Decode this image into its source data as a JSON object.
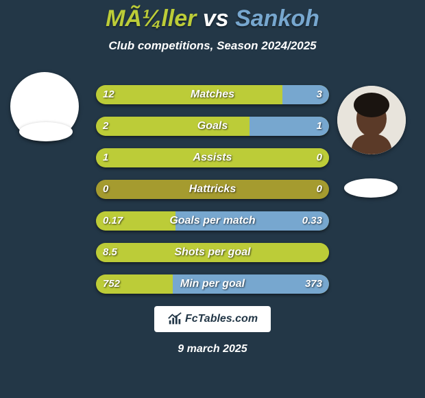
{
  "title": {
    "player1": "MÃ¼ller",
    "vs": "vs",
    "player2": "Sankoh",
    "player1_color": "#bccc38",
    "vs_color": "#ffffff",
    "player2_color": "#77a7cf",
    "fontsize": 34
  },
  "subtitle": "Club competitions, Season 2024/2025",
  "colors": {
    "background": "#233747",
    "bar_base": "#a59b2f",
    "player1_bar": "#bccc38",
    "player2_bar": "#77a7cf",
    "text": "#ffffff"
  },
  "bars": [
    {
      "label": "Matches",
      "left_val": "12",
      "right_val": "3",
      "left_pct": 80,
      "right_pct": 20
    },
    {
      "label": "Goals",
      "left_val": "2",
      "right_val": "1",
      "left_pct": 66,
      "right_pct": 34
    },
    {
      "label": "Assists",
      "left_val": "1",
      "right_val": "0",
      "left_pct": 100,
      "right_pct": 0
    },
    {
      "label": "Hattricks",
      "left_val": "0",
      "right_val": "0",
      "left_pct": 0,
      "right_pct": 0
    },
    {
      "label": "Goals per match",
      "left_val": "0.17",
      "right_val": "0.33",
      "left_pct": 34,
      "right_pct": 66
    },
    {
      "label": "Shots per goal",
      "left_val": "8.5",
      "right_val": "",
      "left_pct": 100,
      "right_pct": 0
    },
    {
      "label": "Min per goal",
      "left_val": "752",
      "right_val": "373",
      "left_pct": 33,
      "right_pct": 67
    }
  ],
  "bar_style": {
    "height": 28,
    "gap": 18,
    "radius": 14,
    "label_fontsize": 16,
    "val_fontsize": 15
  },
  "brand": "FcTables.com",
  "date": "9 march 2025",
  "avatars": {
    "left_bg": "#ffffff",
    "right_skin": "#5b3a28",
    "right_hair": "#1a1410"
  }
}
